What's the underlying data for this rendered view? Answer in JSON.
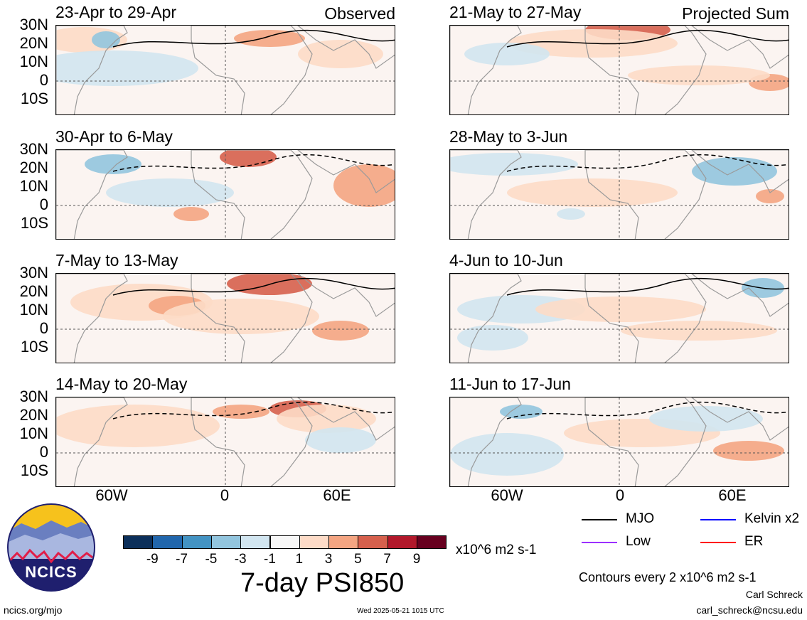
{
  "panels_left": [
    {
      "period": "23-Apr to 29-Apr",
      "tag": "Observed"
    },
    {
      "period": "30-Apr to 6-May",
      "tag": ""
    },
    {
      "period": "7-May to 13-May",
      "tag": ""
    },
    {
      "period": "14-May to 20-May",
      "tag": ""
    }
  ],
  "panels_right": [
    {
      "period": "21-May to 27-May",
      "tag": "Projected Sum"
    },
    {
      "period": "28-May to 3-Jun",
      "tag": ""
    },
    {
      "period": "4-Jun to 10-Jun",
      "tag": ""
    },
    {
      "period": "11-Jun to 17-Jun",
      "tag": ""
    }
  ],
  "lat_labels": [
    "30N",
    "20N",
    "10N",
    "0",
    "10S"
  ],
  "lon_labels": [
    "60W",
    "0",
    "60E"
  ],
  "colorbar": {
    "ticks": [
      "-9",
      "-7",
      "-5",
      "-3",
      "-1",
      "1",
      "3",
      "5",
      "7",
      "9"
    ],
    "colors": [
      "#0b2f5a",
      "#2166ac",
      "#4393c3",
      "#92c5de",
      "#d1e5f0",
      "#f7f7f7",
      "#fddbc7",
      "#f4a582",
      "#d6604d",
      "#b2182b",
      "#67001f"
    ],
    "units": "x10^6 m2 s-1"
  },
  "main_title": "7-day PSI850",
  "legend": {
    "items": [
      {
        "label": "MJO",
        "color": "#000000"
      },
      {
        "label": "Kelvin x2",
        "color": "#0000ff"
      },
      {
        "label": "Low",
        "color": "#9b30ff"
      },
      {
        "label": "ER",
        "color": "#ff0000"
      }
    ],
    "contour_note": "Contours every 2 x10^6 m2 s-1"
  },
  "logo_text": "NCICS",
  "footer": {
    "url": "ncics.org/mjo",
    "timestamp": "Wed 2025-05-21 1015 UTC",
    "author": "Carl Schreck",
    "email": "carl_schreck@ncsu.edu"
  }
}
